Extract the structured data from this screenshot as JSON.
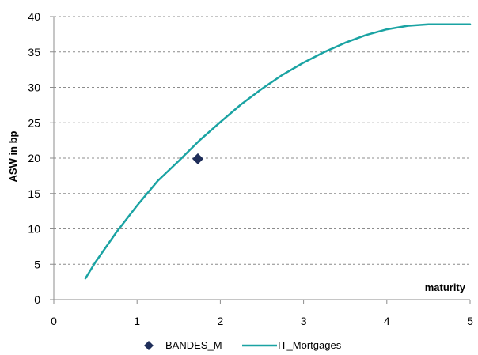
{
  "chart_data": {
    "type": "line",
    "title": "",
    "xlabel": "maturity",
    "ylabel": "ASW in bp",
    "xlim": [
      0,
      5
    ],
    "ylim": [
      0,
      40
    ],
    "xticks": [
      "0",
      "1",
      "2",
      "3",
      "4",
      "5"
    ],
    "yticks": [
      "0",
      "5",
      "10",
      "15",
      "20",
      "25",
      "30",
      "35",
      "40"
    ],
    "grid": "horizontal-dashed",
    "legend_position": "bottom",
    "series": [
      {
        "name": "IT_Mortgages",
        "kind": "line",
        "color": "#1aa3a3",
        "x": [
          0.38,
          0.5,
          0.75,
          1.0,
          1.25,
          1.5,
          1.75,
          2.0,
          2.25,
          2.5,
          2.75,
          3.0,
          3.25,
          3.5,
          3.75,
          4.0,
          4.25,
          4.5,
          4.75,
          5.0
        ],
        "y": [
          3.0,
          5.3,
          9.5,
          13.3,
          16.8,
          19.6,
          22.5,
          25.1,
          27.6,
          29.8,
          31.8,
          33.5,
          35.0,
          36.3,
          37.4,
          38.2,
          38.7,
          38.9,
          38.9,
          38.9
        ]
      },
      {
        "name": "BANDES_M",
        "kind": "marker",
        "marker": "diamond",
        "color": "#1f2e5a",
        "x": [
          1.73
        ],
        "y": [
          19.9
        ]
      }
    ]
  }
}
